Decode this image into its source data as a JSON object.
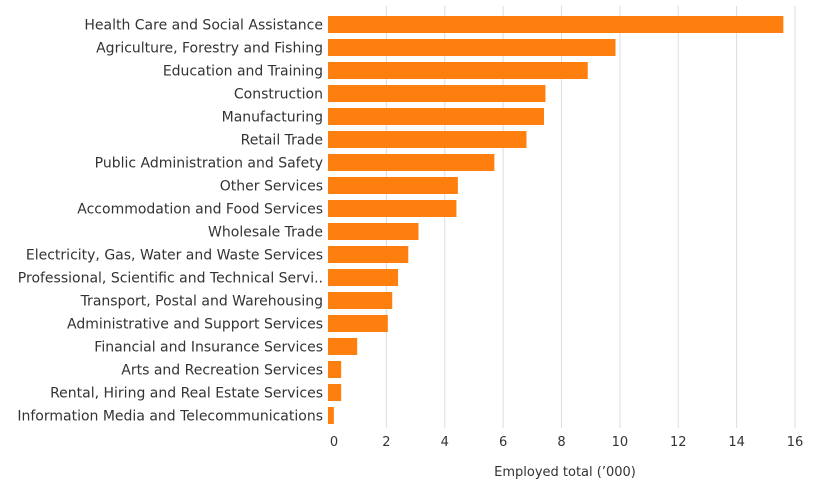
{
  "chart_data": {
    "type": "bar",
    "orientation": "horizontal",
    "categories": [
      "Health Care and Social Assistance",
      "Agriculture, Forestry and Fishing",
      "Education and Training",
      "Construction",
      "Manufacturing",
      "Retail Trade",
      "Public Administration and Safety",
      "Other Services",
      "Accommodation and Food Services",
      "Wholesale Trade",
      "Electricity, Gas, Water and Waste Services",
      "Professional, Scientific and Technical Servi..",
      "Transport, Postal and Warehousing",
      "Administrative and Support Services",
      "Financial and Insurance Services",
      "Arts and Recreation Services",
      "Rental, Hiring and Real Estate Services",
      "Information Media and Telecommunications"
    ],
    "values": [
      15.6,
      9.85,
      8.9,
      7.45,
      7.4,
      6.8,
      5.7,
      4.45,
      4.4,
      3.1,
      2.75,
      2.4,
      2.2,
      2.05,
      1.0,
      0.45,
      0.45,
      0.2
    ],
    "xlabel": "Employed total (’000)",
    "ylabel": "",
    "xlim": [
      0,
      16
    ],
    "xticks": [
      0,
      2,
      4,
      6,
      8,
      10,
      12,
      14,
      16
    ],
    "grid": true,
    "bar_color": "#FF7F0E",
    "grid_color": "#DDDDDD"
  }
}
